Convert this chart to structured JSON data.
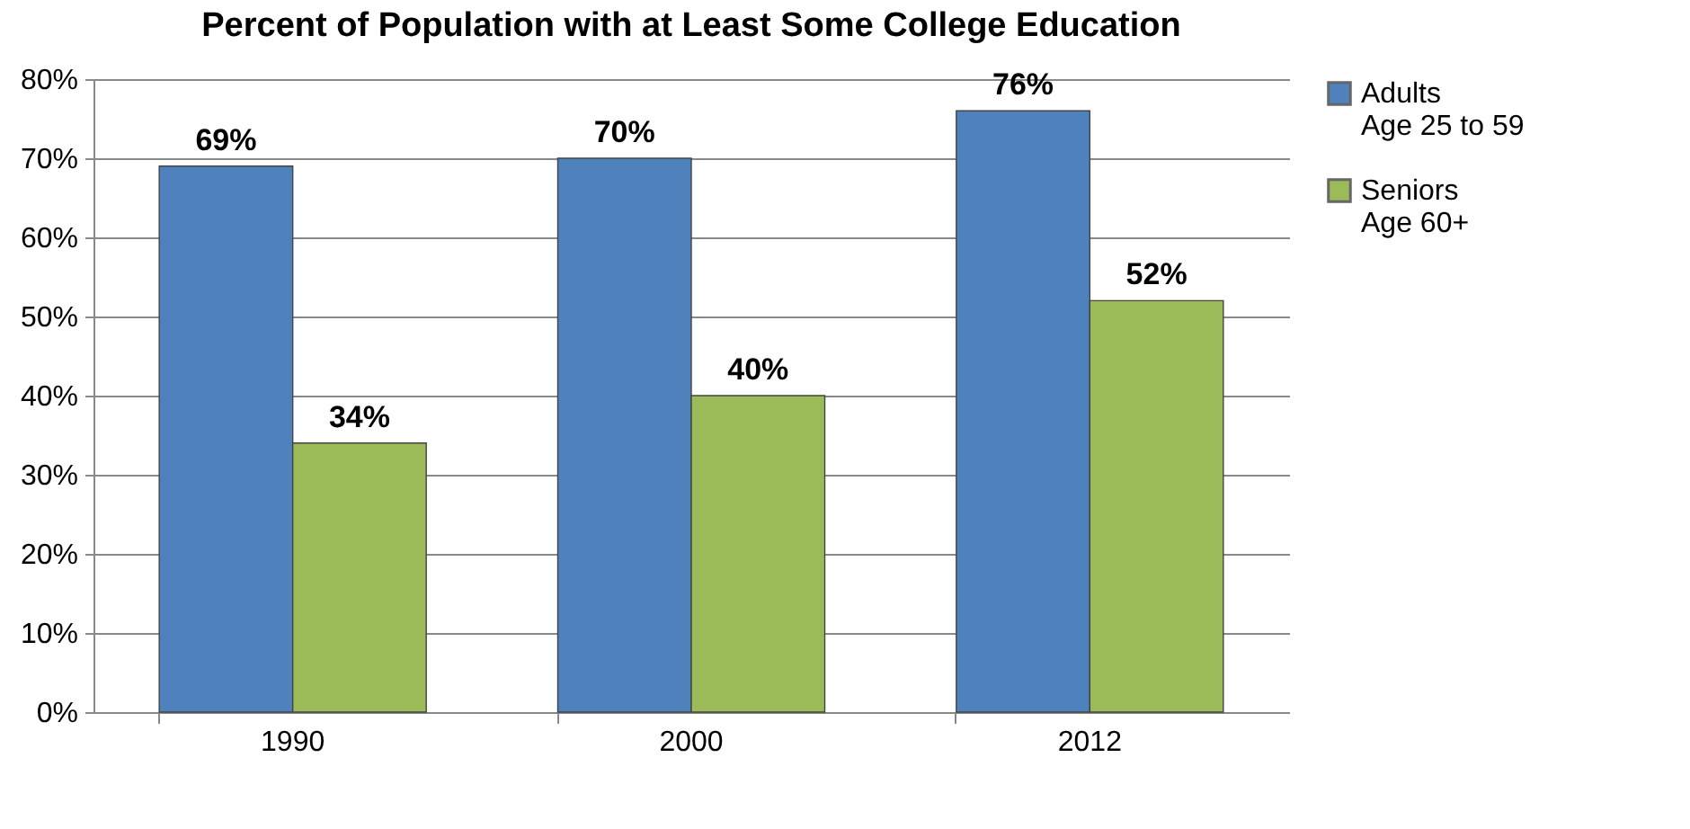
{
  "chart_data": {
    "type": "bar",
    "title": "Percent of Population with at Least Some College Education",
    "categories": [
      "1990",
      "2000",
      "2012"
    ],
    "series": [
      {
        "name": "Adults\nAge 25 to 59",
        "color": "#4f81bd",
        "values": [
          69,
          70,
          76
        ],
        "value_labels": [
          "69%",
          "70%",
          "76%"
        ]
      },
      {
        "name": "Seniors\nAge 60+",
        "color": "#9bbb59",
        "values": [
          34,
          40,
          52
        ],
        "value_labels": [
          "34%",
          "40%",
          "52%"
        ]
      }
    ],
    "ylim": [
      0,
      80
    ],
    "yticks": [
      {
        "value": 0,
        "label": "0%"
      },
      {
        "value": 10,
        "label": "10%"
      },
      {
        "value": 20,
        "label": "20%"
      },
      {
        "value": 30,
        "label": "30%"
      },
      {
        "value": 40,
        "label": "40%"
      },
      {
        "value": 50,
        "label": "50%"
      },
      {
        "value": 60,
        "label": "60%"
      },
      {
        "value": 70,
        "label": "70%"
      },
      {
        "value": 80,
        "label": "80%"
      }
    ],
    "grid": "y",
    "legend": "right"
  }
}
